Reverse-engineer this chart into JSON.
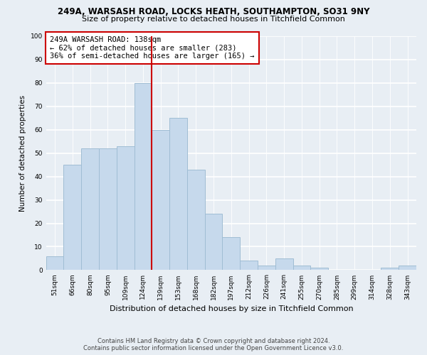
{
  "title1": "249A, WARSASH ROAD, LOCKS HEATH, SOUTHAMPTON, SO31 9NY",
  "title2": "Size of property relative to detached houses in Titchfield Common",
  "xlabel": "Distribution of detached houses by size in Titchfield Common",
  "ylabel": "Number of detached properties",
  "bar_labels": [
    "51sqm",
    "66sqm",
    "80sqm",
    "95sqm",
    "109sqm",
    "124sqm",
    "139sqm",
    "153sqm",
    "168sqm",
    "182sqm",
    "197sqm",
    "212sqm",
    "226sqm",
    "241sqm",
    "255sqm",
    "270sqm",
    "285sqm",
    "299sqm",
    "314sqm",
    "328sqm",
    "343sqm"
  ],
  "bar_values": [
    6,
    45,
    52,
    52,
    53,
    80,
    60,
    65,
    43,
    24,
    14,
    4,
    2,
    5,
    2,
    1,
    0,
    0,
    0,
    1,
    2
  ],
  "bar_color": "#c6d9ec",
  "bar_edge_color": "#a0bdd4",
  "highlight_line_color": "#cc0000",
  "annotation_title": "249A WARSASH ROAD: 138sqm",
  "annotation_line1": "← 62% of detached houses are smaller (283)",
  "annotation_line2": "36% of semi-detached houses are larger (165) →",
  "annotation_box_color": "#ffffff",
  "annotation_box_edge": "#cc0000",
  "ylim": [
    0,
    100
  ],
  "yticks": [
    0,
    10,
    20,
    30,
    40,
    50,
    60,
    70,
    80,
    90,
    100
  ],
  "footer1": "Contains HM Land Registry data © Crown copyright and database right 2024.",
  "footer2": "Contains public sector information licensed under the Open Government Licence v3.0.",
  "bg_color": "#e8eef4"
}
